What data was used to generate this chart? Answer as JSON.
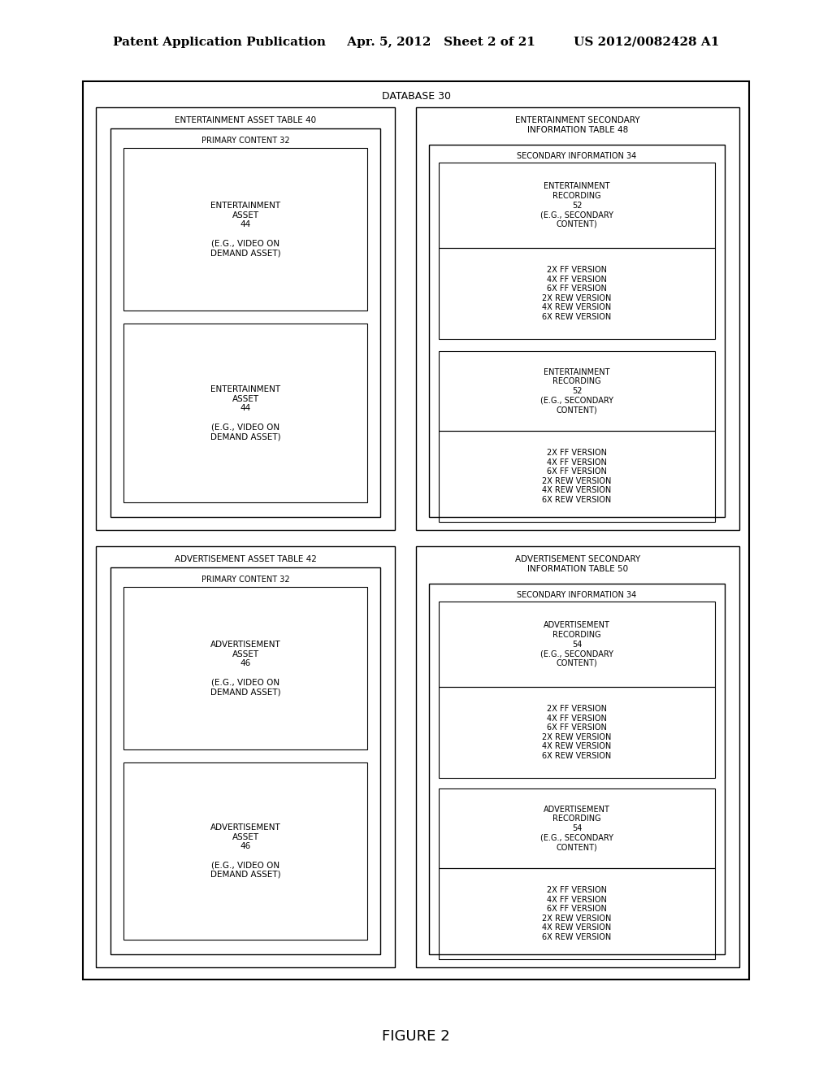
{
  "bg_color": "#ffffff",
  "header": "Patent Application Publication     Apr. 5, 2012   Sheet 2 of 21         US 2012/0082428 A1",
  "figure_label": "FIGURE 2",
  "database_label": "DATABASE 30",
  "version_lines": "2X FF VERSION\n4X FF VERSION\n6X FF VERSION\n2X REW VERSION\n4X REW VERSION\n6X REW VERSION",
  "ent_asset_text": "ENTERTAINMENT\nASSET\n44\n\n(E.G., VIDEO ON\nDEMAND ASSET)",
  "adv_asset_text": "ADVERTISEMENT\nASSET\n46\n\n(E.G., VIDEO ON\nDEMAND ASSET)",
  "ent_rec_text": "ENTERTAINMENT\nRECORDING\n52\n(E.G., SECONDARY\nCONTENT)",
  "adv_rec_text": "ADVERTISEMENT\nRECORDING\n54\n(E.G., SECONDARY\nCONTENT)"
}
